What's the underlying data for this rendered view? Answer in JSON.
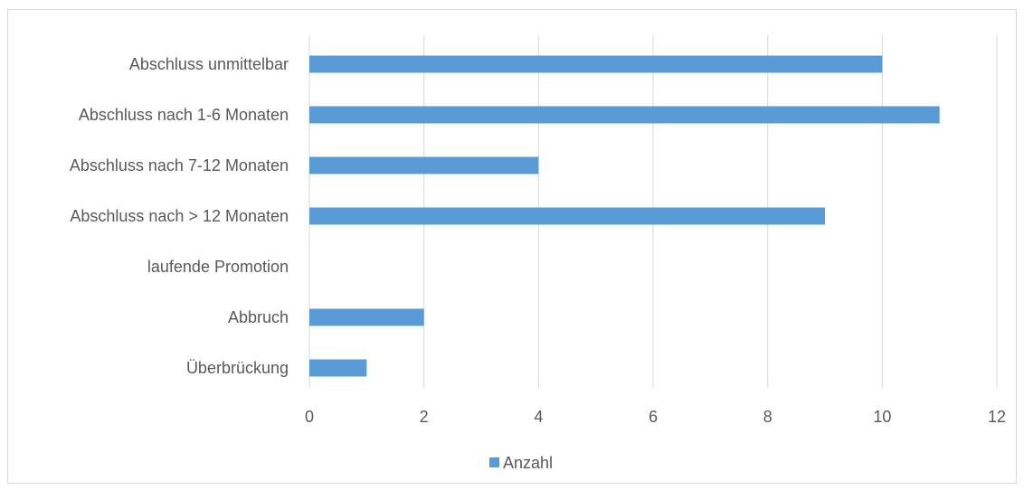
{
  "chart_data": {
    "type": "bar",
    "orientation": "horizontal",
    "categories": [
      "Abschluss unmittelbar",
      "Abschluss nach 1-6 Monaten",
      "Abschluss nach 7-12 Monaten",
      "Abschluss nach > 12 Monaten",
      "laufende Promotion",
      "Abbruch",
      "Überbrückung"
    ],
    "series": [
      {
        "name": "Anzahl",
        "values": [
          10,
          11,
          4,
          9,
          0,
          2,
          1
        ],
        "color": "#5b9bd5"
      }
    ],
    "title": "",
    "xlabel": "",
    "ylabel": "",
    "xlim": [
      0,
      12
    ],
    "xticks": [
      "0",
      "2",
      "4",
      "6",
      "8",
      "10",
      "12"
    ],
    "grid": true,
    "legend_position": "bottom"
  },
  "colors": {
    "bar": "#5b9bd5",
    "grid": "#d9d9d9",
    "text": "#595959"
  }
}
